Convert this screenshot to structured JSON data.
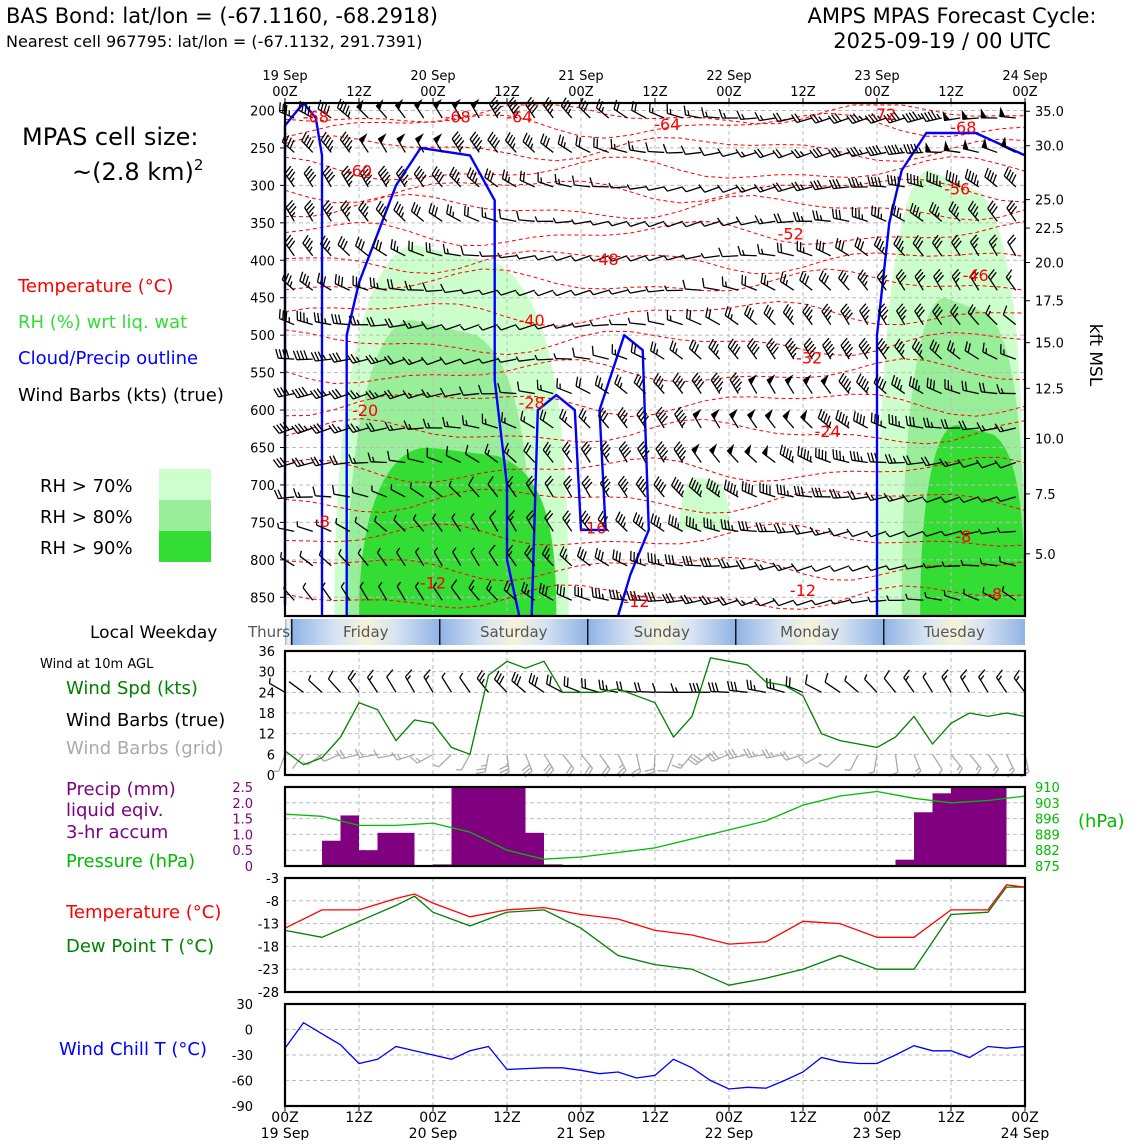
{
  "header": {
    "title_left": "BAS Bond: lat/lon = (-67.1160, -68.2918)",
    "subtitle_left": "Nearest cell 967795: lat/lon = (-67.1132, 291.7391)",
    "title_right_1": "AMPS MPAS Forecast Cycle:",
    "title_right_2": "2025-09-19 / 00 UTC"
  },
  "left_panel": {
    "cell_size_label": "MPAS cell size:",
    "cell_size_value": "~(2.8 km)",
    "cell_size_sup": "2",
    "legend_temperature": "Temperature (°C)",
    "legend_rh": "RH (%) wrt liq. wat",
    "legend_cloud": "Cloud/Precip outline",
    "legend_wind": "Wind Barbs (kts) (true)",
    "rh_bins": [
      "RH > 70%",
      "RH > 80%",
      "RH > 90%"
    ],
    "local_weekday_label": "Local Weekday",
    "wind10m_label": "Wind at 10m AGL",
    "wind_spd_label": "Wind Spd (kts)",
    "wind_barbs_true_label": "Wind Barbs (true)",
    "wind_barbs_grid_label": "Wind Barbs (grid)",
    "precip_label_1": "Precip (mm)",
    "precip_label_2": "liquid eqiv.",
    "precip_label_3": "3-hr accum",
    "pressure_label": "Pressure (hPa)",
    "temp_label": "Temperature (°C)",
    "dewpoint_label": "Dew Point T (°C)",
    "windchill_label": "Wind Chill T (°C)"
  },
  "colors": {
    "temperature": "#ff0000",
    "rh_text": "#33dd33",
    "cloud": "#0000ff",
    "wind_speed": "#008000",
    "wind_barb_grid": "#aaaaaa",
    "precip": "#800080",
    "pressure": "#00bb00",
    "dewpoint": "#008000",
    "windchill": "#0000ff",
    "rh70": "#ccffcc",
    "rh80": "#99ee99",
    "rh90": "#33dd33"
  },
  "chart_data": [
    {
      "type": "heatmap",
      "name": "cross-section",
      "top_ticks": [
        {
          "top": "19 Sep",
          "bottom": "00Z"
        },
        {
          "top": "",
          "bottom": "12Z"
        },
        {
          "top": "20 Sep",
          "bottom": "00Z"
        },
        {
          "top": "",
          "bottom": "12Z"
        },
        {
          "top": "21 Sep",
          "bottom": "00Z"
        },
        {
          "top": "",
          "bottom": "12Z"
        },
        {
          "top": "22 Sep",
          "bottom": "00Z"
        },
        {
          "top": "",
          "bottom": "12Z"
        },
        {
          "top": "23 Sep",
          "bottom": "00Z"
        },
        {
          "top": "",
          "bottom": "12Z"
        },
        {
          "top": "24 Sep",
          "bottom": "00Z"
        }
      ],
      "x_range_hours": [
        0,
        120
      ],
      "y_label_right": "kft MSL",
      "pressure_ticks": [
        200,
        250,
        300,
        350,
        400,
        450,
        500,
        550,
        600,
        650,
        700,
        750,
        800,
        850
      ],
      "pressure_range": [
        190,
        875
      ],
      "height_ticks": [
        {
          "label": "35.0",
          "p": 201
        },
        {
          "label": "30.0",
          "p": 247
        },
        {
          "label": "25.0",
          "p": 319
        },
        {
          "label": "22.5",
          "p": 357
        },
        {
          "label": "20.0",
          "p": 403
        },
        {
          "label": "17.5",
          "p": 454
        },
        {
          "label": "15.0",
          "p": 510
        },
        {
          "label": "12.5",
          "p": 571
        },
        {
          "label": "10.0",
          "p": 638
        },
        {
          "label": "7.5",
          "p": 712
        },
        {
          "label": "5.0",
          "p": 792
        }
      ],
      "temperature_contour_labels": [
        {
          "text": "-68",
          "h": 5,
          "p": 208
        },
        {
          "text": "-68",
          "h": 28,
          "p": 208
        },
        {
          "text": "-64",
          "h": 38,
          "p": 208
        },
        {
          "text": "-64",
          "h": 62,
          "p": 218
        },
        {
          "text": "-72",
          "h": 97,
          "p": 205
        },
        {
          "text": "-68",
          "h": 110,
          "p": 222
        },
        {
          "text": "-60",
          "h": 12,
          "p": 280
        },
        {
          "text": "-56",
          "h": 109,
          "p": 304
        },
        {
          "text": "-52",
          "h": 82,
          "p": 364
        },
        {
          "text": "-48",
          "h": 52,
          "p": 398
        },
        {
          "text": "-46",
          "h": 112,
          "p": 420
        },
        {
          "text": "-40",
          "h": 40,
          "p": 480
        },
        {
          "text": "-32",
          "h": 85,
          "p": 530
        },
        {
          "text": "-28",
          "h": 40,
          "p": 590
        },
        {
          "text": "-24",
          "h": 88,
          "p": 628
        },
        {
          "text": "-20",
          "h": 13,
          "p": 600
        },
        {
          "text": "-16",
          "h": 50,
          "p": 757
        },
        {
          "text": "-12",
          "h": 57,
          "p": 855
        },
        {
          "text": "-12",
          "h": 84,
          "p": 840
        },
        {
          "text": "-12",
          "h": 24,
          "p": 830
        },
        {
          "text": "-8",
          "h": 6,
          "p": 748
        },
        {
          "text": "-8",
          "h": 115,
          "p": 845
        },
        {
          "text": "-8",
          "h": 110,
          "p": 768
        }
      ],
      "rh_bands": [
        {
          "level": 1,
          "h0": 8,
          "h1": 46,
          "p0": 380,
          "p1": 875
        },
        {
          "level": 2,
          "h0": 10,
          "h1": 40,
          "p0": 480,
          "p1": 875
        },
        {
          "level": 3,
          "h0": 12,
          "h1": 44,
          "p0": 650,
          "p1": 875
        },
        {
          "level": 1,
          "h0": 64,
          "h1": 72,
          "p0": 690,
          "p1": 760
        },
        {
          "level": 1,
          "h0": 96,
          "h1": 120,
          "p0": 280,
          "p1": 875
        },
        {
          "level": 2,
          "h0": 100,
          "h1": 120,
          "p0": 450,
          "p1": 875
        },
        {
          "level": 3,
          "h0": 103,
          "h1": 120,
          "p0": 620,
          "p1": 875
        }
      ],
      "cloud_outlines": [
        [
          [
            0,
            860
          ],
          [
            0,
            220
          ],
          [
            3,
            190
          ],
          [
            5,
            210
          ],
          [
            6,
            260
          ],
          [
            6,
            520
          ],
          [
            6,
            875
          ]
        ],
        [
          [
            10,
            875
          ],
          [
            10,
            500
          ],
          [
            12,
            430
          ],
          [
            18,
            300
          ],
          [
            22,
            250
          ],
          [
            30,
            260
          ],
          [
            34,
            320
          ],
          [
            34,
            560
          ],
          [
            36,
            700
          ],
          [
            36,
            800
          ],
          [
            38,
            875
          ]
        ],
        [
          [
            40,
            875
          ],
          [
            41,
            600
          ],
          [
            44,
            580
          ],
          [
            47,
            600
          ],
          [
            48,
            760
          ],
          [
            52,
            760
          ],
          [
            51,
            600
          ],
          [
            55,
            500
          ],
          [
            58,
            520
          ],
          [
            59,
            760
          ],
          [
            56,
            820
          ],
          [
            54,
            875
          ]
        ],
        [
          [
            96,
            875
          ],
          [
            96,
            500
          ],
          [
            98,
            350
          ],
          [
            100,
            280
          ],
          [
            104,
            230
          ],
          [
            112,
            230
          ],
          [
            120,
            260
          ]
        ]
      ],
      "weekdays": [
        "Thursday",
        "Friday",
        "Saturday",
        "Sunday",
        "Monday",
        "Tuesday"
      ]
    },
    {
      "type": "line",
      "name": "wind_speed_10m",
      "x_hours": [
        0,
        3,
        6,
        9,
        12,
        15,
        18,
        21,
        24,
        27,
        30,
        33,
        36,
        39,
        42,
        45,
        48,
        51,
        54,
        57,
        60,
        63,
        66,
        69,
        72,
        75,
        78,
        81,
        84,
        87,
        90,
        93,
        96,
        99,
        102,
        105,
        108,
        111,
        114,
        117,
        120
      ],
      "series": [
        {
          "name": "Wind Spd (kts)",
          "values": [
            7,
            3,
            5,
            11,
            21,
            19,
            10,
            16,
            15,
            8,
            6,
            29,
            33,
            31,
            33,
            24,
            24,
            24,
            25,
            23,
            21,
            11,
            17,
            34,
            33,
            32,
            27,
            26,
            23,
            12,
            10,
            9,
            8,
            11,
            17,
            9,
            15,
            18,
            17,
            18,
            17
          ]
        }
      ],
      "yticks": [
        0,
        6,
        12,
        18,
        24,
        30,
        36
      ],
      "ylim": [
        0,
        36
      ]
    },
    {
      "type": "bar",
      "name": "precip_pressure",
      "precip_x_hours": [
        9,
        12,
        15,
        18,
        21,
        24,
        27,
        30,
        33,
        36,
        39,
        42,
        45,
        48,
        102,
        105,
        108,
        111,
        114,
        117
      ],
      "precip_values": [
        0.8,
        1.6,
        0.5,
        1.05,
        1.05,
        0.02,
        0.05,
        2.5,
        2.5,
        2.5,
        2.5,
        1.05,
        0.05,
        0.02,
        0.2,
        1.7,
        2.3,
        2.5,
        2.5,
        2.5
      ],
      "precip_yticks": [
        "0",
        "0.5",
        "1.0",
        "1.5",
        "2.0",
        "2.5"
      ],
      "precip_ylim": [
        0,
        2.5
      ],
      "pressure_x_hours": [
        0,
        6,
        12,
        18,
        24,
        30,
        36,
        42,
        48,
        54,
        60,
        66,
        72,
        78,
        84,
        90,
        96,
        102,
        108,
        114,
        120
      ],
      "pressure_values": [
        898,
        897,
        893,
        893,
        894,
        890,
        882,
        878,
        879,
        881,
        883,
        887,
        891,
        895,
        902,
        906,
        908,
        905,
        903,
        904,
        906
      ],
      "pressure_yticks": [
        "910",
        "903",
        "896",
        "889",
        "882",
        "875"
      ],
      "pressure_ylim": [
        875,
        910
      ],
      "pressure_unit": "(hPa)"
    },
    {
      "type": "line",
      "name": "temperature_dewpoint",
      "x_hours": [
        0,
        6,
        12,
        18,
        21,
        24,
        30,
        36,
        42,
        48,
        54,
        60,
        66,
        72,
        78,
        84,
        90,
        96,
        102,
        108,
        114,
        117,
        120
      ],
      "series": [
        {
          "name": "Temperature",
          "values": [
            -14,
            -10,
            -10,
            -7.5,
            -6.5,
            -8.5,
            -11.5,
            -10,
            -9.5,
            -11,
            -12,
            -14.5,
            -15.5,
            -17.5,
            -17,
            -12.5,
            -13,
            -16,
            -16,
            -10,
            -10,
            -4.5,
            -5
          ]
        },
        {
          "name": "Dew Point T",
          "values": [
            -14.5,
            -16,
            -12.5,
            -9,
            -7,
            -10.5,
            -13.5,
            -10.5,
            -10,
            -14,
            -20,
            -22,
            -23,
            -26.5,
            -25,
            -23,
            -20,
            -23,
            -23,
            -11,
            -10.5,
            -5,
            -5
          ]
        }
      ],
      "yticks": [
        -3,
        -8,
        -13,
        -18,
        -23,
        -28
      ],
      "ylim": [
        -28,
        -3
      ]
    },
    {
      "type": "line",
      "name": "wind_chill",
      "x_hours": [
        0,
        3,
        6,
        9,
        12,
        15,
        18,
        21,
        24,
        27,
        30,
        33,
        36,
        39,
        42,
        45,
        48,
        51,
        54,
        57,
        60,
        63,
        66,
        69,
        72,
        75,
        78,
        81,
        84,
        87,
        90,
        93,
        96,
        99,
        102,
        105,
        108,
        111,
        114,
        117,
        120
      ],
      "series": [
        {
          "name": "Wind Chill T",
          "values": [
            -22,
            8,
            -5,
            -18,
            -40,
            -35,
            -20,
            -25,
            -30,
            -35,
            -25,
            -20,
            -47,
            -46,
            -45,
            -45,
            -48,
            -52,
            -50,
            -57,
            -54,
            -35,
            -45,
            -60,
            -70,
            -68,
            -69,
            -60,
            -50,
            -33,
            -38,
            -40,
            -40,
            -30,
            -19,
            -25,
            -25,
            -33,
            -20,
            -22,
            -20
          ]
        }
      ],
      "yticks": [
        30,
        0,
        -30,
        -60,
        -90
      ],
      "ylim": [
        -90,
        30
      ]
    }
  ],
  "bottom_axis": [
    {
      "top": "00Z",
      "bottom": "19 Sep"
    },
    {
      "top": "12Z",
      "bottom": ""
    },
    {
      "top": "00Z",
      "bottom": "20 Sep"
    },
    {
      "top": "12Z",
      "bottom": ""
    },
    {
      "top": "00Z",
      "bottom": "21 Sep"
    },
    {
      "top": "12Z",
      "bottom": ""
    },
    {
      "top": "00Z",
      "bottom": "22 Sep"
    },
    {
      "top": "12Z",
      "bottom": ""
    },
    {
      "top": "00Z",
      "bottom": "23 Sep"
    },
    {
      "top": "12Z",
      "bottom": ""
    },
    {
      "top": "00Z",
      "bottom": "24 Sep"
    }
  ]
}
